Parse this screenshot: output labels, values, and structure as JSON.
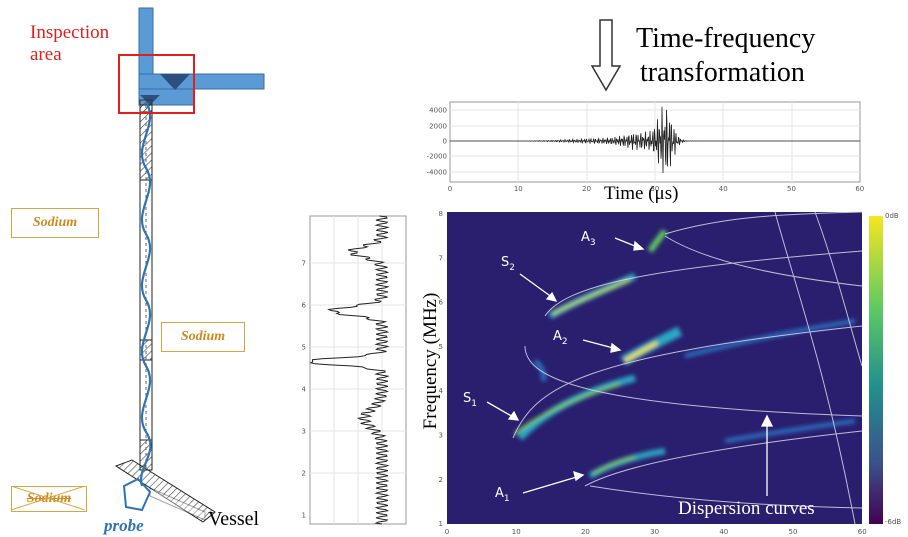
{
  "labels": {
    "inspection_area": [
      "Inspection",
      "area"
    ],
    "sodium": [
      "Sodium",
      "Sodium",
      "Sodium"
    ],
    "probe": "probe",
    "vessel": "Vessel",
    "transformation": [
      "Time-frequency",
      "transformation"
    ],
    "time_axis": "Time (μs)",
    "frequency_axis": "Frequency (MHz)",
    "dispersion": "Dispersion curves",
    "mode_labels": {
      "A3": [
        "A",
        "3"
      ],
      "S2": [
        "S",
        "2"
      ],
      "A2": [
        "A",
        "2"
      ],
      "S1": [
        "S",
        "1"
      ],
      "A1": [
        "A",
        "1"
      ]
    },
    "colorbar": [
      "0dB",
      "-6dB"
    ]
  },
  "ticks": {
    "signal_y": [
      "4000",
      "2000",
      "0",
      "-2000",
      "-4000"
    ],
    "signal_x": [
      "0",
      "10",
      "20",
      "30",
      "40",
      "50",
      "60"
    ],
    "freq_y": [
      "8",
      "7",
      "6",
      "5",
      "4",
      "3",
      "2",
      "1"
    ],
    "spec_x": [
      "0",
      "10",
      "20",
      "30",
      "40",
      "50",
      "60"
    ],
    "spectrum_y": [
      "7",
      "6",
      "5",
      "4",
      "3",
      "2",
      "1"
    ]
  },
  "colors": {
    "red": "#e0201b",
    "pipe_blue": "#5b9bd5",
    "probe_blue": "#2e74b5",
    "sodium_orange": "#d08a1e",
    "spectrogram_bg": "#2a1e6e"
  }
}
